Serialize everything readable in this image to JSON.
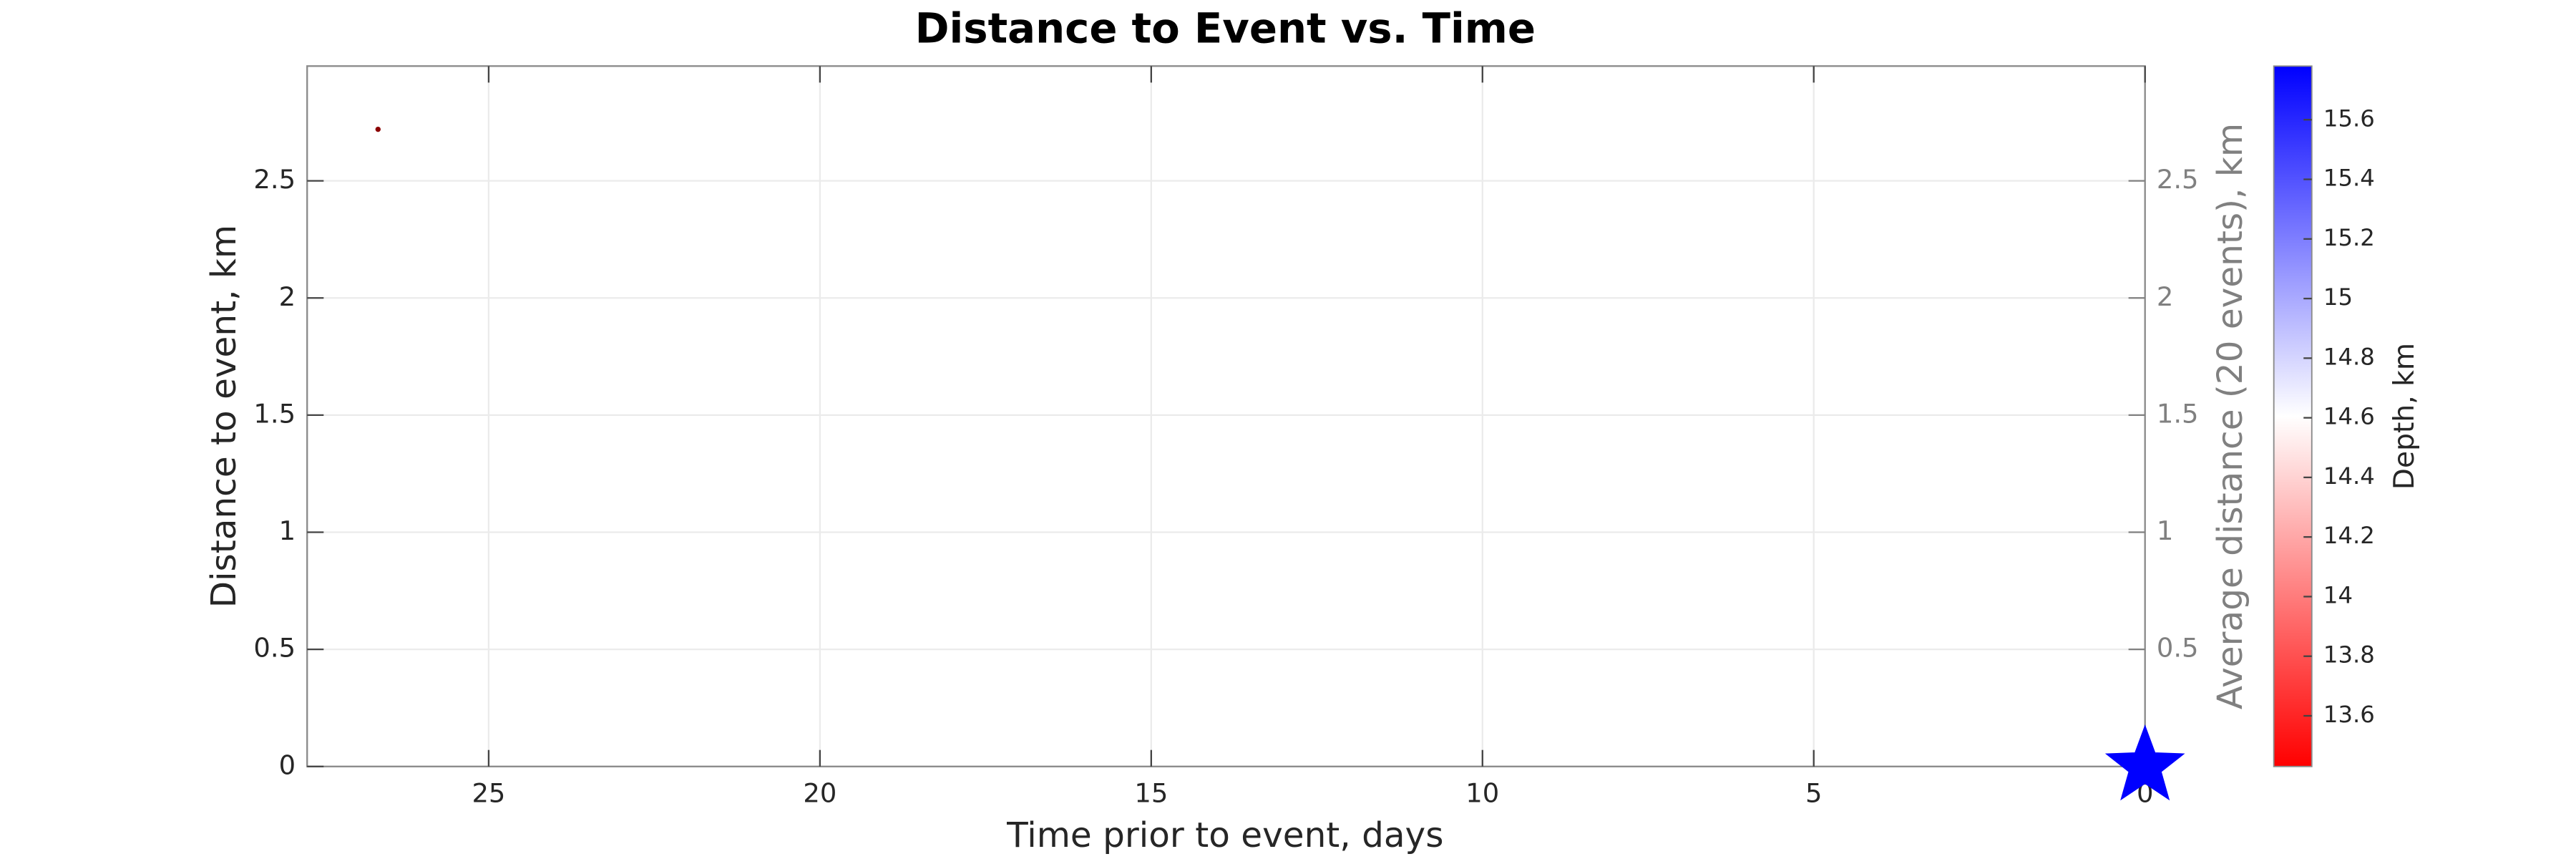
{
  "chart_data": {
    "type": "scatter",
    "title": "Distance to Event vs. Time",
    "xlabel": "Time prior to event, days",
    "ylabel": "Distance to event, km",
    "y2label": "Average distance (20 events), km",
    "xlim": [
      27.74,
      0
    ],
    "xticks": [
      25,
      20,
      15,
      10,
      5,
      0
    ],
    "ylim": [
      0,
      2.99
    ],
    "yticks": [
      0,
      0.5,
      1,
      1.5,
      2,
      2.5
    ],
    "y2lim": [
      0,
      2.99
    ],
    "y2ticks": [
      0.5,
      1,
      1.5,
      2,
      2.5
    ],
    "grid": true,
    "series": [
      {
        "color": "#8b0000",
        "marker": "dot",
        "x": [
          26.67
        ],
        "values": [
          2.72
        ]
      },
      {
        "color": "#0000ff",
        "marker": "star",
        "x": [
          0
        ],
        "values": [
          0
        ]
      }
    ],
    "colorbar": {
      "label": "Depth, km",
      "lim": [
        13.43,
        15.78
      ],
      "ticks": [
        13.6,
        13.8,
        14,
        14.2,
        14.4,
        14.6,
        14.8,
        15,
        15.2,
        15.4,
        15.6
      ],
      "colors": [
        "#ff0000",
        "#ffffff",
        "#0000ff"
      ]
    }
  }
}
